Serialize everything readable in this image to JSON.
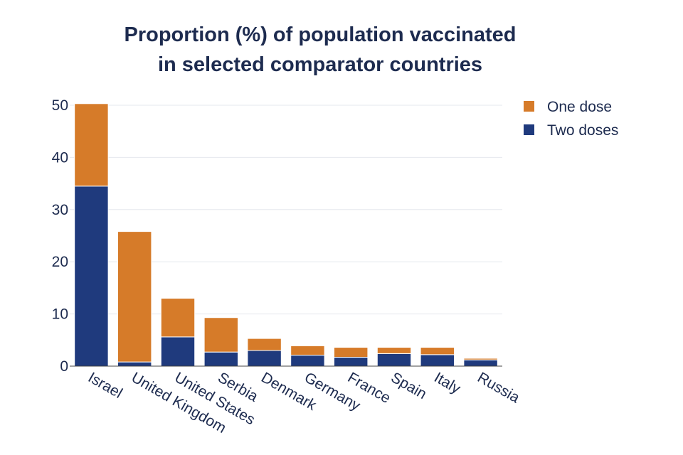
{
  "chart_data": {
    "type": "bar",
    "stacked": true,
    "title_lines": [
      "Proportion (%) of population vaccinated",
      "in selected comparator countries"
    ],
    "categories": [
      "Israel",
      "United Kingdom",
      "United States",
      "Serbia",
      "Denmark",
      "Germany",
      "France",
      "Spain",
      "Italy",
      "Russia"
    ],
    "series": [
      {
        "name": "Two doses",
        "color": "#1f3a7d",
        "values": [
          34.5,
          0.8,
          5.6,
          2.7,
          3.0,
          2.1,
          1.7,
          2.4,
          2.2,
          1.2
        ]
      },
      {
        "name": "One dose",
        "color": "#d67b29",
        "values": [
          15.8,
          25.0,
          7.4,
          6.6,
          2.3,
          1.8,
          1.9,
          1.2,
          1.4,
          0.3
        ]
      }
    ],
    "legend_order": [
      "One dose",
      "Two doses"
    ],
    "legend_position": "top-right",
    "yticks": [
      0,
      10,
      20,
      30,
      40,
      50
    ],
    "ylim": [
      0,
      50
    ],
    "grid": true,
    "xlabel": "",
    "ylabel": ""
  }
}
